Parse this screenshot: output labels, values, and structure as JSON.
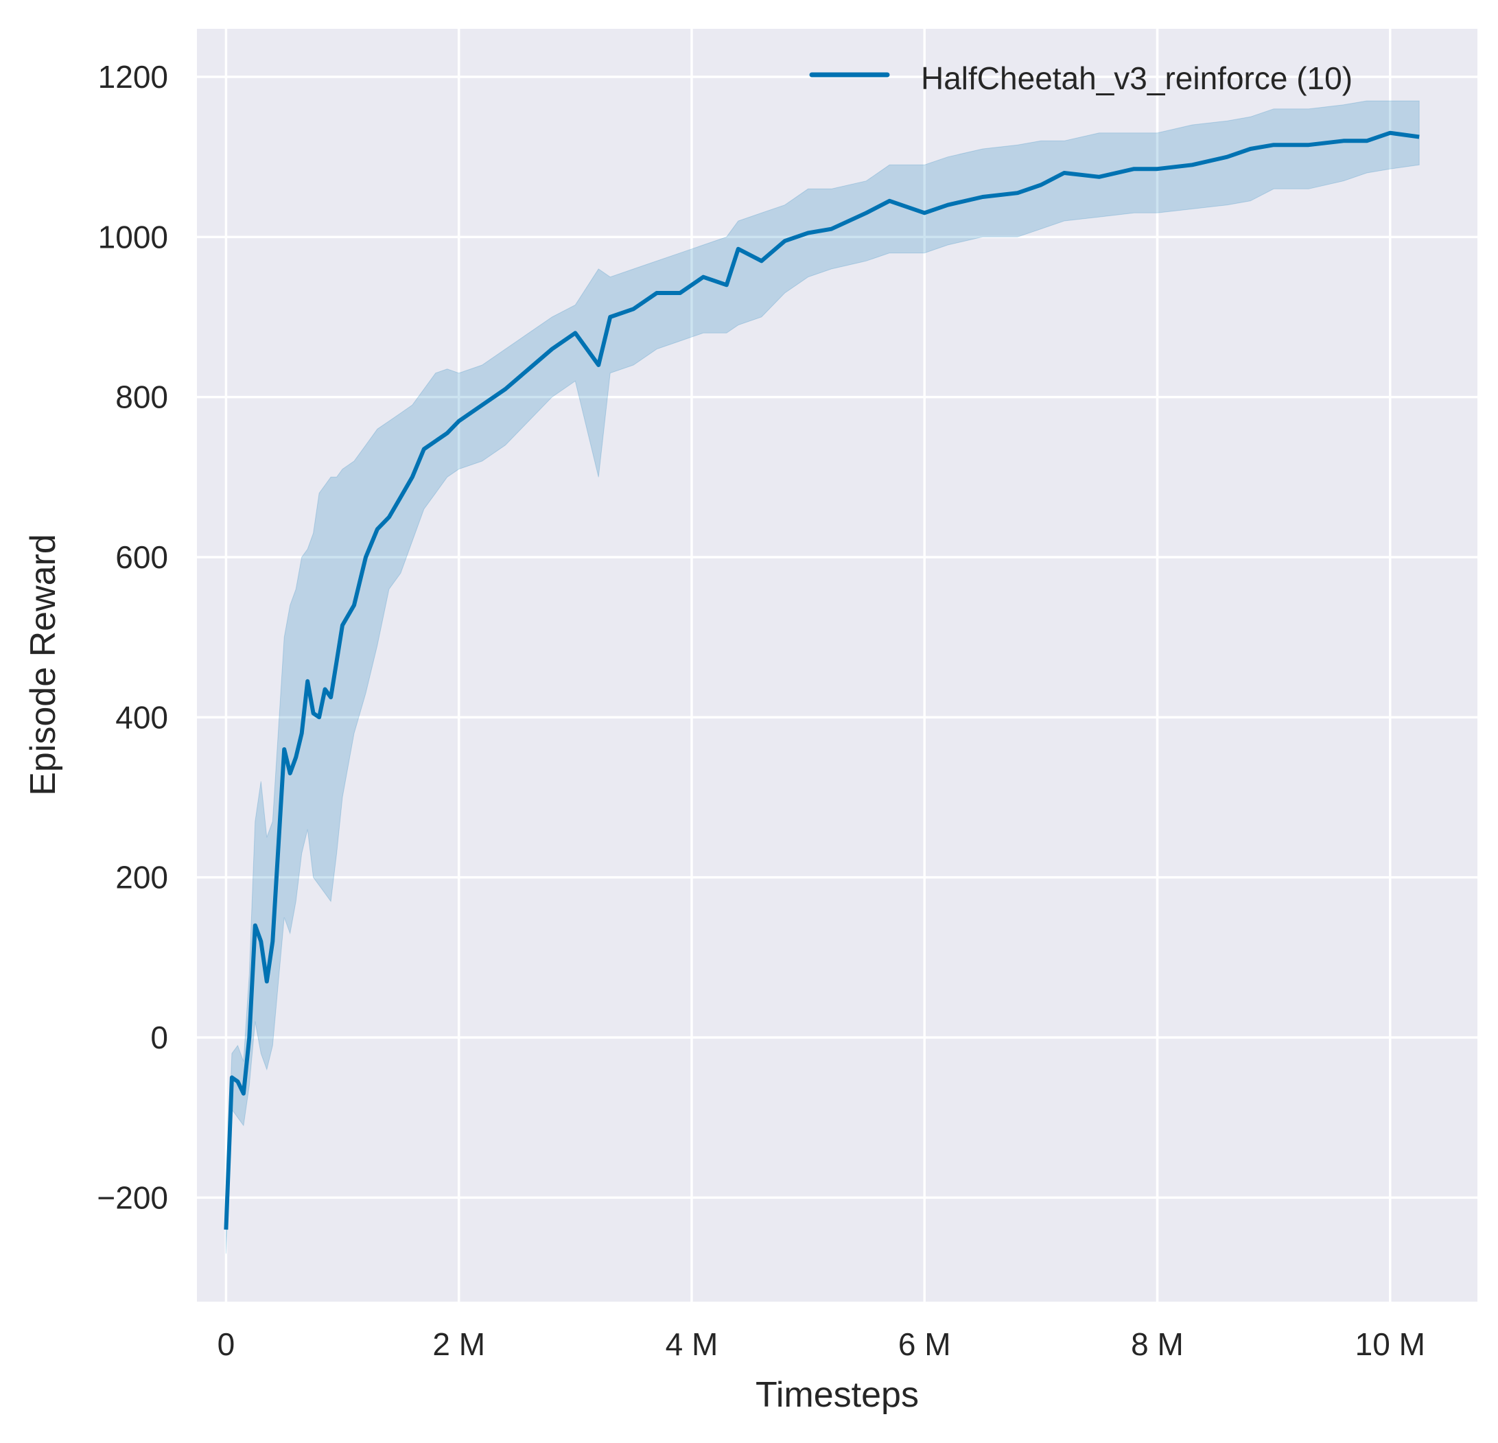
{
  "chart_data": {
    "type": "line",
    "title": "",
    "xlabel": "Timesteps",
    "ylabel": "Episode Reward",
    "xlim": [
      -0.25,
      10.75
    ],
    "ylim": [
      -330,
      1260
    ],
    "x_unit": "M",
    "xticks": [
      0,
      2,
      4,
      6,
      8,
      10
    ],
    "xtick_labels": [
      "0",
      "2 M",
      "4 M",
      "6 M",
      "8 M",
      "10 M"
    ],
    "yticks": [
      -200,
      0,
      200,
      400,
      600,
      800,
      1000,
      1200
    ],
    "ytick_labels": [
      "−200",
      "0",
      "200",
      "400",
      "600",
      "800",
      "1000",
      "1200"
    ],
    "grid": true,
    "legend_position": "top-right",
    "background": "#eaeaf2",
    "series": [
      {
        "name": "HalfCheetah_v3_reinforce (10)",
        "color": "#0072b2",
        "x": [
          0,
          0.05,
          0.1,
          0.15,
          0.2,
          0.25,
          0.3,
          0.35,
          0.4,
          0.5,
          0.55,
          0.6,
          0.65,
          0.7,
          0.75,
          0.8,
          0.85,
          0.9,
          0.95,
          1.0,
          1.1,
          1.2,
          1.3,
          1.4,
          1.5,
          1.6,
          1.7,
          1.8,
          1.9,
          2.0,
          2.2,
          2.4,
          2.6,
          2.8,
          3.0,
          3.2,
          3.3,
          3.5,
          3.7,
          3.9,
          4.1,
          4.3,
          4.4,
          4.6,
          4.8,
          5.0,
          5.2,
          5.5,
          5.7,
          6.0,
          6.2,
          6.5,
          6.8,
          7.0,
          7.2,
          7.5,
          7.8,
          8.0,
          8.3,
          8.6,
          8.8,
          9.0,
          9.3,
          9.6,
          9.8,
          10.0,
          10.25
        ],
        "mean": [
          -240,
          -50,
          -55,
          -70,
          0,
          140,
          120,
          70,
          120,
          360,
          330,
          350,
          380,
          445,
          405,
          400,
          435,
          425,
          470,
          515,
          540,
          600,
          635,
          650,
          675,
          700,
          735,
          745,
          755,
          770,
          790,
          810,
          835,
          860,
          880,
          840,
          900,
          910,
          930,
          930,
          950,
          940,
          985,
          970,
          995,
          1005,
          1010,
          1030,
          1045,
          1030,
          1040,
          1050,
          1055,
          1065,
          1080,
          1075,
          1085,
          1085,
          1090,
          1100,
          1110,
          1115,
          1115,
          1120,
          1120,
          1130,
          1125
        ],
        "lower": [
          -270,
          -90,
          -100,
          -110,
          -60,
          20,
          -20,
          -40,
          -10,
          150,
          130,
          170,
          230,
          260,
          200,
          190,
          180,
          170,
          230,
          300,
          380,
          430,
          490,
          560,
          580,
          620,
          660,
          680,
          700,
          710,
          720,
          740,
          770,
          800,
          820,
          700,
          830,
          840,
          860,
          870,
          880,
          880,
          890,
          900,
          930,
          950,
          960,
          970,
          980,
          980,
          990,
          1000,
          1000,
          1010,
          1020,
          1025,
          1030,
          1030,
          1035,
          1040,
          1045,
          1060,
          1060,
          1070,
          1080,
          1085,
          1090
        ],
        "upper": [
          -220,
          -20,
          -10,
          -30,
          80,
          270,
          320,
          250,
          270,
          500,
          540,
          560,
          600,
          610,
          630,
          680,
          690,
          700,
          700,
          710,
          720,
          740,
          760,
          770,
          780,
          790,
          810,
          830,
          835,
          830,
          840,
          860,
          880,
          900,
          915,
          960,
          950,
          960,
          970,
          980,
          990,
          1000,
          1020,
          1030,
          1040,
          1060,
          1060,
          1070,
          1090,
          1090,
          1100,
          1110,
          1115,
          1120,
          1120,
          1130,
          1130,
          1130,
          1140,
          1145,
          1150,
          1160,
          1160,
          1165,
          1170,
          1170,
          1170
        ]
      }
    ]
  }
}
